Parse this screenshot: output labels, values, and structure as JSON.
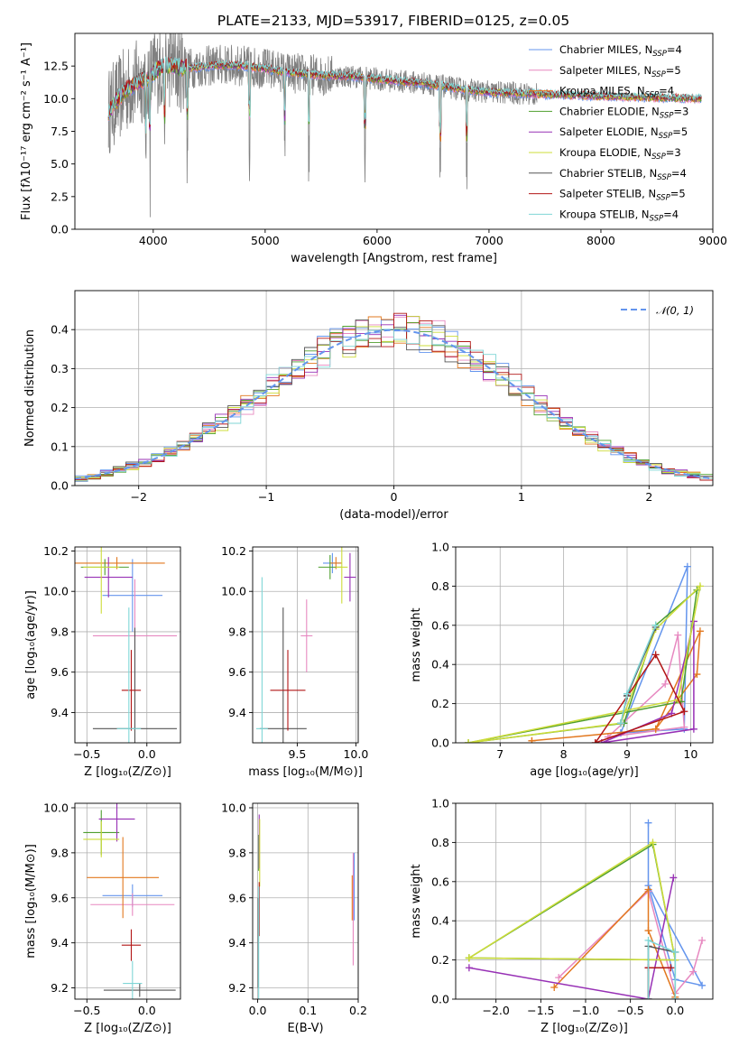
{
  "colors": [
    "#6495ed",
    "#e788c0",
    "#e2781f",
    "#4f9f2e",
    "#9730b5",
    "#cddc3a",
    "#555555",
    "#b21616",
    "#7fd6d6"
  ],
  "chart_data": [
    {
      "type": "line",
      "title": "PLATE=2133, MJD=53917, FIBERID=0125, z=0.05",
      "xlabel": "wavelength [Angstrom, rest frame]",
      "ylabel": "Flux [fλ10⁻¹⁷ erg cm⁻² s⁻¹ A⁻¹]",
      "xlim": [
        3300,
        9000
      ],
      "ylim": [
        0,
        15
      ],
      "xticks": [
        "4000",
        "5000",
        "6000",
        "7000",
        "8000",
        "9000"
      ],
      "yticks": [
        "0.0",
        "2.5",
        "5.0",
        "7.5",
        "10.0",
        "12.5"
      ],
      "legend_position": "top-right",
      "data_series_name": "data",
      "data_x_range": [
        3600,
        7430
      ],
      "data_anchors": [
        [
          3600,
          9.0
        ],
        [
          3650,
          9.6
        ],
        [
          3750,
          10.6
        ],
        [
          3850,
          11.2
        ],
        [
          3950,
          11.6
        ],
        [
          4050,
          12.3
        ],
        [
          4150,
          12.6
        ],
        [
          4250,
          12.3
        ],
        [
          4400,
          12.4
        ],
        [
          4600,
          12.6
        ],
        [
          4800,
          12.5
        ],
        [
          5000,
          12.3
        ],
        [
          5200,
          12.0
        ],
        [
          5500,
          11.8
        ],
        [
          5800,
          11.7
        ],
        [
          6100,
          11.4
        ],
        [
          6400,
          11.2
        ],
        [
          6700,
          10.8
        ],
        [
          7000,
          10.5
        ],
        [
          7300,
          10.4
        ],
        [
          7430,
          10.3
        ]
      ],
      "model_x_range": [
        3600,
        8900
      ],
      "model_anchors": [
        [
          3600,
          9.0
        ],
        [
          3650,
          9.6
        ],
        [
          3750,
          10.6
        ],
        [
          3850,
          11.2
        ],
        [
          3950,
          11.6
        ],
        [
          4050,
          12.3
        ],
        [
          4150,
          12.6
        ],
        [
          4250,
          12.3
        ],
        [
          4400,
          12.4
        ],
        [
          4600,
          12.6
        ],
        [
          4800,
          12.5
        ],
        [
          5000,
          12.3
        ],
        [
          5200,
          12.0
        ],
        [
          5500,
          11.8
        ],
        [
          5800,
          11.7
        ],
        [
          6100,
          11.4
        ],
        [
          6400,
          11.2
        ],
        [
          6700,
          10.8
        ],
        [
          7000,
          10.5
        ],
        [
          7300,
          10.4
        ],
        [
          7600,
          10.3
        ],
        [
          8000,
          10.2
        ],
        [
          8400,
          10.1
        ],
        [
          8900,
          10.0
        ]
      ],
      "absorption_lines": [
        3933,
        3968,
        4102,
        4304,
        4861,
        5175,
        5390,
        5892,
        6563,
        6800
      ],
      "series": [
        {
          "name": "Chabrier MILES, N_SSP=4",
          "label_main": "Chabrier MILES, N",
          "label_sub": "SSP",
          "label_end": "=4"
        },
        {
          "name": "Salpeter MILES, N_SSP=5",
          "label_main": "Salpeter MILES, N",
          "label_sub": "SSP",
          "label_end": "=5"
        },
        {
          "name": "Kroupa MILES, N_SSP=4",
          "label_main": "Kroupa MILES, N",
          "label_sub": "SSP",
          "label_end": "=4"
        },
        {
          "name": "Chabrier ELODIE, N_SSP=3",
          "label_main": "Chabrier ELODIE, N",
          "label_sub": "SSP",
          "label_end": "=3"
        },
        {
          "name": "Salpeter ELODIE, N_SSP=5",
          "label_main": "Salpeter ELODIE, N",
          "label_sub": "SSP",
          "label_end": "=5"
        },
        {
          "name": "Kroupa ELODIE, N_SSP=3",
          "label_main": "Kroupa ELODIE, N",
          "label_sub": "SSP",
          "label_end": "=3"
        },
        {
          "name": "Chabrier STELIB, N_SSP=4",
          "label_main": "Chabrier STELIB, N",
          "label_sub": "SSP",
          "label_end": "=4"
        },
        {
          "name": "Salpeter STELIB, N_SSP=5",
          "label_main": "Salpeter STELIB, N",
          "label_sub": "SSP",
          "label_end": "=5"
        },
        {
          "name": "Kroupa STELIB, N_SSP=4",
          "label_main": "Kroupa STELIB, N",
          "label_sub": "SSP",
          "label_end": "=4"
        }
      ]
    },
    {
      "type": "histogram",
      "xlabel": "(data-model)/error",
      "ylabel": "Normed distribution",
      "xlim": [
        -2.5,
        2.5
      ],
      "ylim": [
        0,
        0.5
      ],
      "xticks": [
        "−2",
        "−1",
        "0",
        "1",
        "2"
      ],
      "yticks": [
        "0.0",
        "0.1",
        "0.2",
        "0.3",
        "0.4"
      ],
      "bin_width": 0.1,
      "reference_curve": {
        "name": "ñ(0,1)",
        "label_main": "𝒩(0, 1)",
        "style": "dashed",
        "color": "#6495ed"
      },
      "legend_position": "top-right"
    },
    {
      "type": "errorbar",
      "xlabel": "Z [log₁₀(Z/Z⊙)]",
      "ylabel": "age  [log₁₀(age/yr)]",
      "xlim": [
        -0.6,
        0.28
      ],
      "ylim": [
        9.25,
        10.22
      ],
      "xticks": [
        "−0.5",
        "0.0"
      ],
      "yticks": [
        "9.4",
        "9.6",
        "9.8",
        "10.0",
        "10.2"
      ],
      "points": [
        {
          "x": -0.12,
          "xerr": 0.25,
          "y": 9.98,
          "yerr": 0.18
        },
        {
          "x": -0.1,
          "xerr": 0.35,
          "y": 9.78,
          "yerr": 0.28
        },
        {
          "x": -0.25,
          "xerr": 0.4,
          "y": 10.14,
          "yerr": 0.03
        },
        {
          "x": -0.35,
          "xerr": 0.2,
          "y": 10.12,
          "yerr": 0.04
        },
        {
          "x": -0.32,
          "xerr": 0.2,
          "y": 10.07,
          "yerr": 0.1
        },
        {
          "x": -0.38,
          "xerr": 0.15,
          "y": 10.12,
          "yerr": 0.23
        },
        {
          "x": -0.1,
          "xerr": 0.35,
          "y": 9.32,
          "yerr": 0.5
        },
        {
          "x": -0.13,
          "xerr": 0.08,
          "y": 9.51,
          "yerr": 0.2
        },
        {
          "x": -0.15,
          "xerr": 0.1,
          "y": 9.32,
          "yerr": 0.6
        }
      ]
    },
    {
      "type": "errorbar",
      "xlabel": "mass [log₁₀(M/M⊙)]",
      "ylabel": "",
      "xlim": [
        9.12,
        10.02
      ],
      "ylim": [
        9.25,
        10.22
      ],
      "xticks": [
        "9.5",
        "10.0"
      ],
      "yticks": [
        "9.4",
        "9.6",
        "9.8",
        "10.0",
        "10.2"
      ],
      "points": [
        {
          "x": 9.8,
          "xerr": 0.08,
          "y": 10.14,
          "yerr": 0.05
        },
        {
          "x": 9.58,
          "xerr": 0.05,
          "y": 9.78,
          "yerr": 0.18
        },
        {
          "x": 9.83,
          "xerr": 0.05,
          "y": 10.14,
          "yerr": 0.03
        },
        {
          "x": 9.78,
          "xerr": 0.1,
          "y": 10.12,
          "yerr": 0.06
        },
        {
          "x": 9.95,
          "xerr": 0.05,
          "y": 10.07,
          "yerr": 0.12
        },
        {
          "x": 9.88,
          "xerr": 0.05,
          "y": 10.12,
          "yerr": 0.18
        },
        {
          "x": 9.38,
          "xerr": 0.2,
          "y": 9.32,
          "yerr": 0.6
        },
        {
          "x": 9.42,
          "xerr": 0.15,
          "y": 9.51,
          "yerr": 0.2
        },
        {
          "x": 9.2,
          "xerr": 0.05,
          "y": 9.32,
          "yerr": 0.75
        }
      ]
    },
    {
      "type": "line",
      "xlabel": "age  [log₁₀(age/yr)]",
      "ylabel": "mass weight",
      "xlim": [
        6.3,
        10.35
      ],
      "ylim": [
        0,
        1.0
      ],
      "xticks": [
        "7",
        "8",
        "9",
        "10"
      ],
      "yticks": [
        "0.0",
        "0.2",
        "0.4",
        "0.6",
        "0.8",
        "1.0"
      ],
      "series": [
        {
          "points": [
            [
              8.9,
              0.05
            ],
            [
              9.9,
              0.07
            ],
            [
              9.95,
              0.9
            ],
            [
              8.9,
              0.05
            ]
          ]
        },
        {
          "points": [
            [
              8.7,
              0.03
            ],
            [
              9.6,
              0.3
            ],
            [
              9.8,
              0.55
            ],
            [
              9.9,
              0.08
            ],
            [
              8.7,
              0.03
            ]
          ]
        },
        {
          "points": [
            [
              7.5,
              0.01
            ],
            [
              9.45,
              0.07
            ],
            [
              10.1,
              0.35
            ],
            [
              10.15,
              0.57
            ],
            [
              9.45,
              0.07
            ],
            [
              7.5,
              0.01
            ]
          ]
        },
        {
          "points": [
            [
              6.5,
              0.0
            ],
            [
              9.85,
              0.21
            ],
            [
              10.1,
              0.78
            ],
            [
              9.45,
              0.6
            ],
            [
              8.95,
              0.1
            ],
            [
              6.5,
              0.0
            ]
          ]
        },
        {
          "points": [
            [
              8.6,
              0.0
            ],
            [
              9.7,
              0.15
            ],
            [
              10.05,
              0.62
            ],
            [
              10.05,
              0.07
            ],
            [
              8.6,
              0.0
            ]
          ]
        },
        {
          "points": [
            [
              6.5,
              0.0
            ],
            [
              9.8,
              0.22
            ],
            [
              10.15,
              0.8
            ],
            [
              9.45,
              0.58
            ],
            [
              8.9,
              0.1
            ],
            [
              6.5,
              0.0
            ]
          ]
        },
        {
          "points": [
            [
              8.9,
              0.1
            ],
            [
              9.0,
              0.24
            ],
            [
              9.45,
              0.59
            ],
            [
              9.0,
              0.24
            ]
          ]
        },
        {
          "points": [
            [
              8.5,
              0.0
            ],
            [
              9.45,
              0.45
            ],
            [
              9.9,
              0.16
            ],
            [
              8.5,
              0.0
            ]
          ]
        },
        {
          "points": [
            [
              8.9,
              0.1
            ],
            [
              9.0,
              0.25
            ],
            [
              9.45,
              0.6
            ],
            [
              9.0,
              0.25
            ]
          ]
        }
      ]
    },
    {
      "type": "errorbar",
      "xlabel": "Z [log₁₀(Z/Z⊙)]",
      "ylabel": "mass [log₁₀(M/M⊙)]",
      "xlim": [
        -0.6,
        0.28
      ],
      "ylim": [
        9.15,
        10.02
      ],
      "xticks": [
        "−0.5",
        "0.0"
      ],
      "yticks": [
        "9.2",
        "9.4",
        "9.6",
        "9.8",
        "10.0"
      ],
      "points": [
        {
          "x": -0.12,
          "xerr": 0.25,
          "y": 9.61,
          "yerr": 0.05
        },
        {
          "x": -0.12,
          "xerr": 0.35,
          "y": 9.57,
          "yerr": 0.05
        },
        {
          "x": -0.2,
          "xerr": 0.3,
          "y": 9.69,
          "yerr": 0.18
        },
        {
          "x": -0.38,
          "xerr": 0.15,
          "y": 9.89,
          "yerr": 0.1
        },
        {
          "x": -0.25,
          "xerr": 0.15,
          "y": 9.95,
          "yerr": 0.1
        },
        {
          "x": -0.38,
          "xerr": 0.15,
          "y": 9.86,
          "yerr": 0.08
        },
        {
          "x": -0.06,
          "xerr": 0.3,
          "y": 9.19,
          "yerr": 0.03
        },
        {
          "x": -0.13,
          "xerr": 0.08,
          "y": 9.39,
          "yerr": 0.07
        },
        {
          "x": -0.12,
          "xerr": 0.08,
          "y": 9.22,
          "yerr": 0.1
        }
      ]
    },
    {
      "type": "errorbar",
      "xlabel": "E(B-V)",
      "ylabel": "",
      "xlim": [
        -0.01,
        0.2
      ],
      "ylim": [
        9.15,
        10.02
      ],
      "xticks": [
        "0.0",
        "0.1",
        "0.2"
      ],
      "yticks": [
        "9.2",
        "9.4",
        "9.6",
        "9.8",
        "10.0"
      ],
      "points": [
        {
          "x": 0.192,
          "y": 9.65,
          "yerr": 0.15
        },
        {
          "x": 0.19,
          "y": 9.55,
          "yerr": 0.25
        },
        {
          "x": 0.188,
          "y": 9.6,
          "yerr": 0.1
        },
        {
          "x": 0.002,
          "y": 9.8,
          "yerr": 0.08
        },
        {
          "x": 0.003,
          "y": 9.85,
          "yerr": 0.12
        },
        {
          "x": 0.004,
          "y": 9.8,
          "yerr": 0.15
        },
        {
          "x": 0.001,
          "y": 9.4,
          "yerr": 0.2
        },
        {
          "x": 0.003,
          "y": 9.55,
          "yerr": 0.12
        },
        {
          "x": 0.002,
          "y": 9.4,
          "yerr": 0.25
        }
      ]
    },
    {
      "type": "line",
      "xlabel": "Z [log₁₀(Z/Z⊙)]",
      "ylabel": "mass weight",
      "xlim": [
        -2.45,
        0.42
      ],
      "ylim": [
        0,
        1.0
      ],
      "xticks": [
        "−2.0",
        "−1.5",
        "−1.0",
        "−0.5",
        "0.0"
      ],
      "yticks": [
        "0.0",
        "0.2",
        "0.4",
        "0.6",
        "0.8",
        "1.0"
      ],
      "series": [
        {
          "points": [
            [
              -0.3,
              0.9
            ],
            [
              -0.3,
              0.58
            ],
            [
              0.0,
              0.1
            ],
            [
              0.3,
              0.07
            ],
            [
              -0.3,
              0.58
            ]
          ]
        },
        {
          "points": [
            [
              -1.3,
              0.11
            ],
            [
              -0.3,
              0.55
            ],
            [
              0.0,
              0.03
            ],
            [
              0.2,
              0.14
            ],
            [
              0.3,
              0.3
            ]
          ]
        },
        {
          "points": [
            [
              -1.35,
              0.06
            ],
            [
              -0.3,
              0.56
            ],
            [
              -0.3,
              0.35
            ],
            [
              0.0,
              0.01
            ]
          ]
        },
        {
          "points": [
            [
              -2.3,
              0.21
            ],
            [
              -0.25,
              0.79
            ],
            [
              0.0,
              0.2
            ],
            [
              -2.3,
              0.21
            ]
          ]
        },
        {
          "points": [
            [
              -2.3,
              0.16
            ],
            [
              -0.3,
              0.0
            ],
            [
              -0.02,
              0.62
            ],
            [
              -0.3,
              0.0
            ]
          ]
        },
        {
          "points": [
            [
              -2.3,
              0.21
            ],
            [
              -0.25,
              0.8
            ],
            [
              0.0,
              0.2
            ],
            [
              -2.3,
              0.21
            ]
          ]
        },
        {
          "points": [
            [
              -0.3,
              0.0
            ],
            [
              -0.3,
              0.27
            ],
            [
              0.0,
              0.24
            ],
            [
              0.0,
              0.0
            ]
          ]
        },
        {
          "points": [
            [
              -0.3,
              0.0
            ],
            [
              -0.3,
              0.16
            ],
            [
              -0.05,
              0.16
            ],
            [
              -0.3,
              0.16
            ]
          ]
        },
        {
          "points": [
            [
              -0.3,
              0.0
            ],
            [
              -0.3,
              0.3
            ],
            [
              0.0,
              0.24
            ],
            [
              0.0,
              0.0
            ]
          ]
        }
      ]
    }
  ]
}
